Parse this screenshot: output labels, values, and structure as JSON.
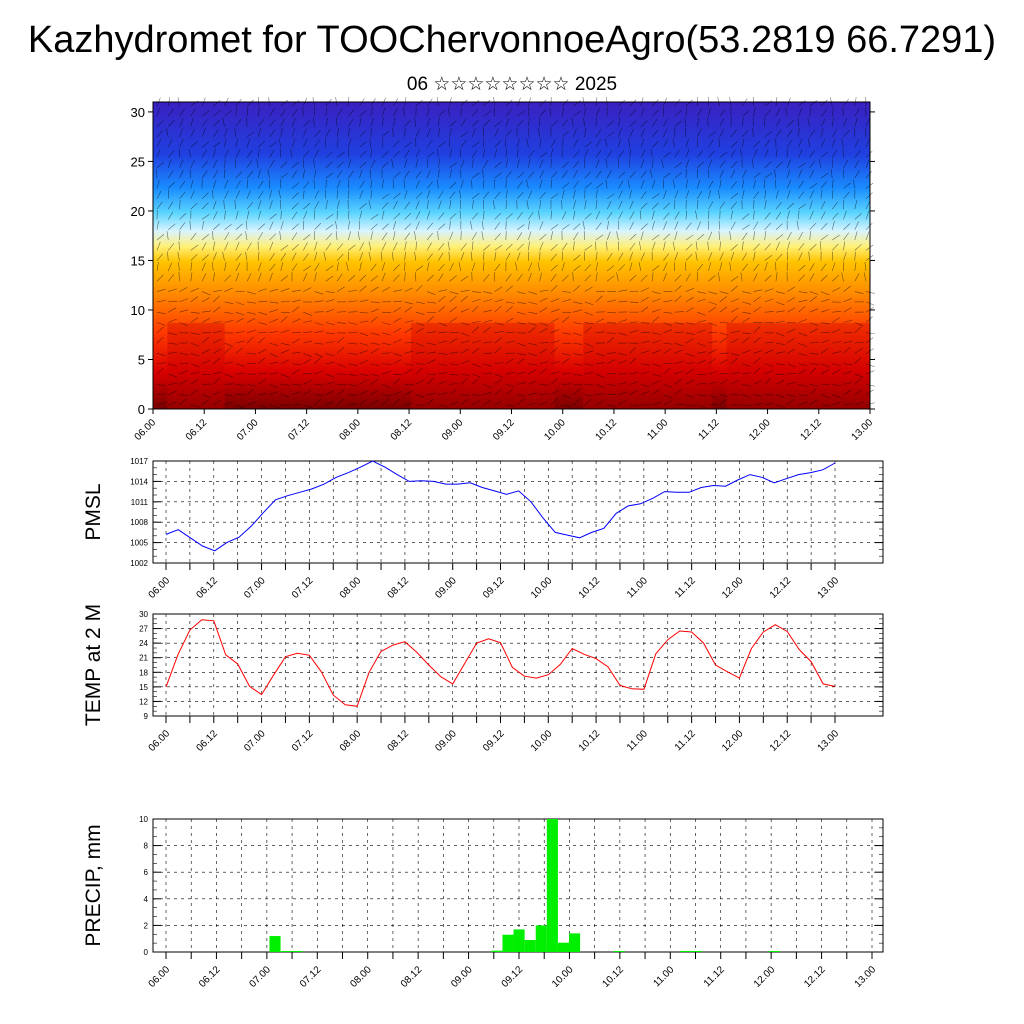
{
  "title": "Kazhydromet for TOOChervonnoeAgro(53.2819 66.7291)",
  "subtitle": "06 ☆☆☆☆☆☆☆☆ 2025",
  "x_tick_labels": [
    "06.00",
    "06.12",
    "07.00",
    "07.12",
    "08.00",
    "08.12",
    "09.00",
    "09.12",
    "10.00",
    "10.12",
    "11.00",
    "11.12",
    "12.00",
    "12.12",
    "13.00"
  ],
  "colors": {
    "pmsl_line": "#0000ff",
    "temp_line": "#ff0000",
    "precip_bar": "#00ee00",
    "grid": "#000000"
  },
  "chart_data": [
    {
      "type": "heatmap",
      "title": "",
      "description_of_field": "vertical cross-section of temperature with wind barbs",
      "ylabel": "",
      "xlabel": "",
      "ylim": [
        0,
        31
      ],
      "y_ticks": [
        0,
        5,
        10,
        15,
        20,
        25,
        30
      ],
      "color_scale": [
        "#7a0000",
        "#d90000",
        "#ff3a00",
        "#ff8c00",
        "#ffc400",
        "#fff07a",
        "#d8f4ff",
        "#5ad4ff",
        "#1a8cff",
        "#2040e0",
        "#3a20c0"
      ],
      "grid": false
    },
    {
      "type": "line",
      "ylabel": "PMSL",
      "ylim": [
        1002,
        1017
      ],
      "y_ticks": [
        1002,
        1005,
        1008,
        1011,
        1014,
        1017
      ],
      "grid": true,
      "series": [
        {
          "values": [
            1006.2,
            1006.9,
            1005.7,
            1004.5,
            1003.8,
            1005.0,
            1005.8,
            1007.4,
            1009.4,
            1011.3,
            1011.9,
            1012.4,
            1012.9,
            1013.6,
            1014.6,
            1015.3,
            1016.1,
            1017.0,
            1016.1,
            1015.0,
            1014.0,
            1014.1,
            1014.0,
            1013.6,
            1013.6,
            1013.8,
            1013.1,
            1012.6,
            1012.1,
            1012.6,
            1011.0,
            1008.6,
            1006.5,
            1006.1,
            1005.7,
            1006.5,
            1007.1,
            1009.3,
            1010.4,
            1010.7,
            1011.5,
            1012.5,
            1012.4,
            1012.4,
            1013.1,
            1013.4,
            1013.3,
            1014.2,
            1015.0,
            1014.6,
            1013.8,
            1014.4,
            1015.0,
            1015.3,
            1015.7,
            1016.7
          ]
        }
      ]
    },
    {
      "type": "line",
      "ylabel": "TEMP at 2 M",
      "ylim": [
        9,
        30
      ],
      "y_ticks": [
        9,
        12,
        15,
        18,
        21,
        24,
        27,
        30
      ],
      "grid": true,
      "series": [
        {
          "values": [
            15.0,
            21.6,
            26.7,
            28.8,
            28.6,
            21.6,
            19.7,
            15.1,
            13.4,
            17.4,
            21.2,
            21.9,
            21.5,
            18.1,
            13.3,
            11.3,
            11.0,
            18.0,
            22.3,
            23.6,
            24.3,
            22.1,
            19.5,
            17.1,
            15.6,
            19.8,
            24.0,
            24.9,
            24.1,
            19.0,
            17.2,
            16.8,
            17.5,
            19.6,
            22.9,
            21.7,
            20.8,
            19.1,
            15.3,
            14.6,
            14.5,
            21.8,
            24.7,
            26.5,
            26.3,
            24.0,
            19.5,
            18.1,
            16.8,
            22.9,
            26.3,
            27.8,
            26.4,
            22.7,
            20.2,
            15.6,
            15.1
          ]
        }
      ]
    },
    {
      "type": "bar",
      "ylabel": "PRECIP, mm",
      "ylim": [
        0,
        10
      ],
      "y_ticks": [
        0,
        2,
        4,
        6,
        8,
        10
      ],
      "grid": true,
      "values": [
        0,
        0,
        0,
        0,
        0,
        1.2,
        0.05,
        0.05,
        0,
        0,
        0,
        0,
        0,
        0,
        0,
        0,
        0,
        0,
        0,
        0,
        0,
        0,
        0,
        0,
        0,
        0.1,
        1.3,
        1.7,
        0.9,
        2.0,
        10.0,
        0.7,
        1.4,
        0,
        0,
        0,
        0.03,
        0,
        0,
        0,
        0,
        0,
        0.08,
        0.05,
        0,
        0,
        0,
        0,
        0,
        0,
        0.05,
        0,
        0,
        0,
        0,
        0
      ]
    }
  ]
}
